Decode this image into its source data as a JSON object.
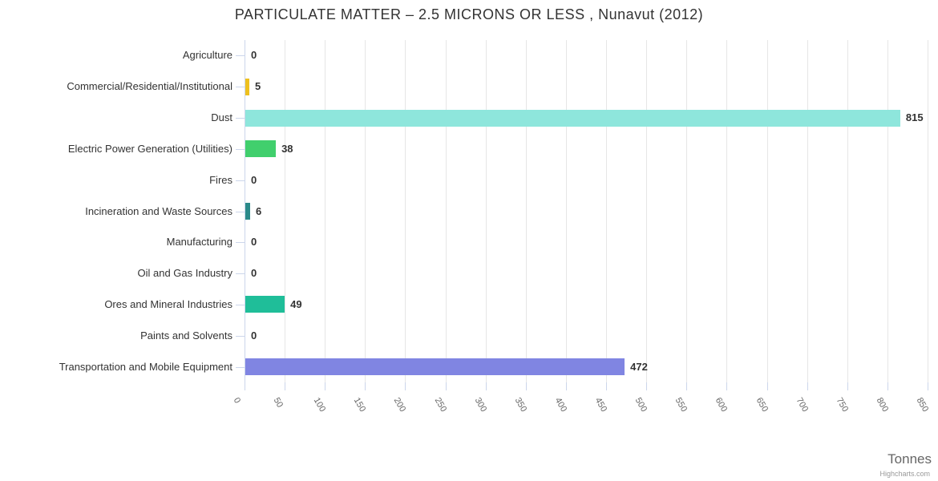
{
  "chart_data": {
    "type": "bar",
    "orientation": "horizontal",
    "title": "PARTICULATE MATTER – 2.5 MICRONS OR LESS , Nunavut (2012)",
    "categories": [
      "Agriculture",
      "Commercial/Residential/Institutional",
      "Dust",
      "Electric Power Generation (Utilities)",
      "Fires",
      "Incineration and Waste Sources",
      "Manufacturing",
      "Oil and Gas Industry",
      "Ores and Mineral Industries",
      "Paints and Solvents",
      "Transportation and Mobile Equipment"
    ],
    "values": [
      0,
      5,
      815,
      38,
      0,
      6,
      0,
      0,
      49,
      0,
      472
    ],
    "data_labels": [
      "0",
      "5",
      "815",
      "38",
      "0",
      "6",
      "0",
      "0",
      "49",
      "0",
      "472"
    ],
    "point_colors": [
      null,
      "#eec01e",
      "#8ee6dc",
      "#41cf6d",
      null,
      "#2b8a8a",
      null,
      null,
      "#1fbe99",
      null,
      "#8085e2"
    ],
    "xlabel": "Tonnes",
    "ylabel": "",
    "xlim": [
      0,
      850
    ],
    "x_ticks": [
      0,
      50,
      100,
      150,
      200,
      250,
      300,
      350,
      400,
      450,
      500,
      550,
      600,
      650,
      700,
      750,
      800,
      850
    ],
    "grid": true,
    "legend": false,
    "credits": "Highcharts.com",
    "colors": {
      "grid_line": "#e6e6e6",
      "axis_line": "#ccd6eb",
      "title_text": "#333333",
      "category_text": "#333333",
      "value_text": "#333333",
      "tick_text": "#666666",
      "axis_title_text": "#666666",
      "credits_text": "#999999"
    }
  }
}
